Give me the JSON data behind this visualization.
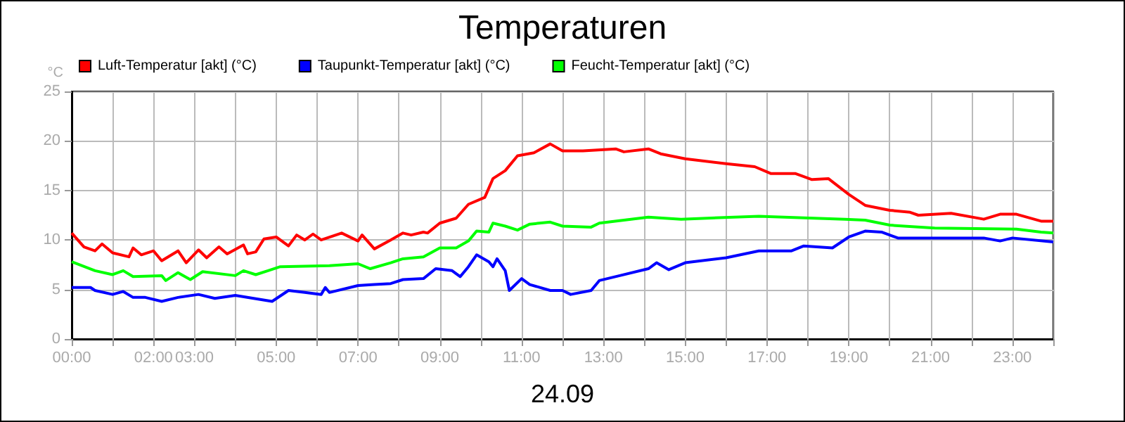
{
  "chart_data": {
    "type": "line",
    "title": "Temperaturen",
    "xlabel": "24.09",
    "ylabel": "°C",
    "xlim": [
      0,
      24
    ],
    "xticks": [
      {
        "value": 0,
        "label": "00:00"
      },
      {
        "value": 1,
        "label": null
      },
      {
        "value": 2,
        "label": "02:00"
      },
      {
        "value": 3,
        "label": "03:00"
      },
      {
        "value": 4,
        "label": null
      },
      {
        "value": 5,
        "label": "05:00"
      },
      {
        "value": 6,
        "label": null
      },
      {
        "value": 7,
        "label": "07:00"
      },
      {
        "value": 8,
        "label": null
      },
      {
        "value": 9,
        "label": "09:00"
      },
      {
        "value": 10,
        "label": null
      },
      {
        "value": 11,
        "label": "11:00"
      },
      {
        "value": 12,
        "label": null
      },
      {
        "value": 13,
        "label": "13:00"
      },
      {
        "value": 14,
        "label": null
      },
      {
        "value": 15,
        "label": "15:00"
      },
      {
        "value": 16,
        "label": null
      },
      {
        "value": 17,
        "label": "17:00"
      },
      {
        "value": 18,
        "label": null
      },
      {
        "value": 19,
        "label": "19:00"
      },
      {
        "value": 20,
        "label": null
      },
      {
        "value": 21,
        "label": "21:00"
      },
      {
        "value": 22,
        "label": null
      },
      {
        "value": 23,
        "label": "23:00"
      },
      {
        "value": 24,
        "label": null
      }
    ],
    "ylim": [
      0,
      25
    ],
    "yticks": [
      0,
      5,
      10,
      15,
      20,
      25
    ],
    "grid": true,
    "legend": "top left",
    "marker": "none",
    "line_style": "solid",
    "series": [
      {
        "name": "Luft-Temperatur [akt] (°C)",
        "color": "#ff0000",
        "x": [
          0,
          0.3,
          0.57,
          0.74,
          1.0,
          1.4,
          1.5,
          1.7,
          2.0,
          2.2,
          2.6,
          2.8,
          3.1,
          3.3,
          3.6,
          3.8,
          4.2,
          4.3,
          4.5,
          4.7,
          5.0,
          5.3,
          5.5,
          5.7,
          5.9,
          6.1,
          6.6,
          7.0,
          7.1,
          7.4,
          7.8,
          8.1,
          8.3,
          8.6,
          8.7,
          9.0,
          9.4,
          9.7,
          10.1,
          10.3,
          10.6,
          10.9,
          11.3,
          11.7,
          12.0,
          12.5,
          13.3,
          13.5,
          14.1,
          14.4,
          15.0,
          16.0,
          16.7,
          17.1,
          17.7,
          18.1,
          18.5,
          19.0,
          19.4,
          20.0,
          20.5,
          20.7,
          21.5,
          22.3,
          22.7,
          23.1,
          23.7,
          24.0
        ],
        "values": [
          10.7,
          9.3,
          8.9,
          9.6,
          8.7,
          8.3,
          9.2,
          8.5,
          8.9,
          7.9,
          8.9,
          7.7,
          9.0,
          8.2,
          9.3,
          8.6,
          9.5,
          8.6,
          8.8,
          10.1,
          10.3,
          9.4,
          10.5,
          10.0,
          10.6,
          10.0,
          10.7,
          9.9,
          10.5,
          9.1,
          10.0,
          10.7,
          10.5,
          10.8,
          10.7,
          11.7,
          12.2,
          13.6,
          14.3,
          16.2,
          17.0,
          18.5,
          18.8,
          19.7,
          19.0,
          19.0,
          19.2,
          18.9,
          19.2,
          18.7,
          18.2,
          17.7,
          17.4,
          16.7,
          16.7,
          16.1,
          16.2,
          14.6,
          13.5,
          13.0,
          12.8,
          12.5,
          12.7,
          12.1,
          12.6,
          12.6,
          11.9,
          11.9
        ]
      },
      {
        "name": "Taupunkt-Temperatur [akt] (°C)",
        "color": "#0000ff",
        "x": [
          0,
          0.46,
          0.57,
          1.0,
          1.26,
          1.5,
          1.8,
          2.2,
          2.6,
          3.1,
          3.5,
          4.0,
          4.9,
          5.3,
          5.7,
          6.1,
          6.2,
          6.3,
          7.0,
          7.4,
          7.8,
          8.1,
          8.6,
          8.9,
          9.3,
          9.5,
          9.7,
          9.9,
          10.2,
          10.3,
          10.4,
          10.6,
          10.7,
          11.0,
          11.2,
          11.7,
          12.0,
          12.2,
          12.7,
          12.9,
          13.4,
          14.1,
          14.3,
          14.6,
          15.0,
          16.0,
          16.8,
          17.6,
          17.9,
          18.6,
          19.0,
          19.4,
          19.8,
          20.2,
          22.3,
          22.7,
          23.0,
          24.0
        ],
        "values": [
          5.2,
          5.2,
          4.9,
          4.5,
          4.8,
          4.2,
          4.2,
          3.8,
          4.2,
          4.5,
          4.1,
          4.4,
          3.8,
          4.9,
          4.7,
          4.5,
          5.2,
          4.7,
          5.4,
          5.5,
          5.6,
          6.0,
          6.1,
          7.1,
          6.9,
          6.3,
          7.3,
          8.5,
          7.8,
          7.3,
          8.1,
          6.9,
          4.9,
          6.1,
          5.5,
          4.9,
          4.9,
          4.5,
          4.9,
          5.9,
          6.4,
          7.1,
          7.7,
          7.0,
          7.7,
          8.2,
          8.9,
          8.9,
          9.4,
          9.2,
          10.3,
          10.9,
          10.8,
          10.2,
          10.2,
          9.9,
          10.2,
          9.8
        ]
      },
      {
        "name": "Feucht-Temperatur [akt] (°C)",
        "color": "#00ff00",
        "x": [
          0,
          0.57,
          1.0,
          1.26,
          1.5,
          2.2,
          2.3,
          2.6,
          2.9,
          3.2,
          4.0,
          4.2,
          4.5,
          4.8,
          5.1,
          6.3,
          7.0,
          7.3,
          7.8,
          8.1,
          8.6,
          9.0,
          9.4,
          9.7,
          9.9,
          10.2,
          10.3,
          10.6,
          10.9,
          11.2,
          11.7,
          12.0,
          12.7,
          12.9,
          14.1,
          14.9,
          16.8,
          18.9,
          19.4,
          20.0,
          21.1,
          23.1,
          23.7,
          24.0
        ],
        "values": [
          7.8,
          6.9,
          6.5,
          6.9,
          6.3,
          6.4,
          5.9,
          6.7,
          6.0,
          6.8,
          6.4,
          6.9,
          6.5,
          6.9,
          7.3,
          7.4,
          7.6,
          7.1,
          7.7,
          8.1,
          8.3,
          9.2,
          9.2,
          9.9,
          10.9,
          10.8,
          11.7,
          11.4,
          11.0,
          11.6,
          11.8,
          11.4,
          11.3,
          11.7,
          12.3,
          12.1,
          12.4,
          12.1,
          12.0,
          11.5,
          11.2,
          11.1,
          10.8,
          10.7
        ]
      }
    ]
  }
}
